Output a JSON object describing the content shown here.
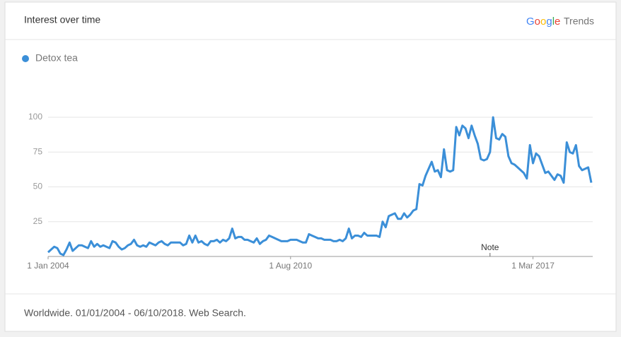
{
  "brand": {
    "name": "Google",
    "product": "Trends"
  },
  "footer": "Worldwide. 01/01/2004 - 06/10/2018. Web Search.",
  "chart_data": {
    "type": "line",
    "title": "Interest over time",
    "x": [
      "2004-01",
      "2004-02",
      "2004-03",
      "2004-04",
      "2004-05",
      "2004-06",
      "2004-07",
      "2004-08",
      "2004-09",
      "2004-10",
      "2004-11",
      "2004-12",
      "2005-01",
      "2005-02",
      "2005-03",
      "2005-04",
      "2005-05",
      "2005-06",
      "2005-07",
      "2005-08",
      "2005-09",
      "2005-10",
      "2005-11",
      "2005-12",
      "2006-01",
      "2006-02",
      "2006-03",
      "2006-04",
      "2006-05",
      "2006-06",
      "2006-07",
      "2006-08",
      "2006-09",
      "2006-10",
      "2006-11",
      "2006-12",
      "2007-01",
      "2007-02",
      "2007-03",
      "2007-04",
      "2007-05",
      "2007-06",
      "2007-07",
      "2007-08",
      "2007-09",
      "2007-10",
      "2007-11",
      "2007-12",
      "2008-01",
      "2008-02",
      "2008-03",
      "2008-04",
      "2008-05",
      "2008-06",
      "2008-07",
      "2008-08",
      "2008-09",
      "2008-10",
      "2008-11",
      "2008-12",
      "2009-01",
      "2009-02",
      "2009-03",
      "2009-04",
      "2009-05",
      "2009-06",
      "2009-07",
      "2009-08",
      "2009-09",
      "2009-10",
      "2009-11",
      "2009-12",
      "2010-01",
      "2010-02",
      "2010-03",
      "2010-04",
      "2010-05",
      "2010-06",
      "2010-07",
      "2010-08",
      "2010-09",
      "2010-10",
      "2010-11",
      "2010-12",
      "2011-01",
      "2011-02",
      "2011-03",
      "2011-04",
      "2011-05",
      "2011-06",
      "2011-07",
      "2011-08",
      "2011-09",
      "2011-10",
      "2011-11",
      "2011-12",
      "2012-01",
      "2012-02",
      "2012-03",
      "2012-04",
      "2012-05",
      "2012-06",
      "2012-07",
      "2012-08",
      "2012-09",
      "2012-10",
      "2012-11",
      "2012-12",
      "2013-01",
      "2013-02",
      "2013-03",
      "2013-04",
      "2013-05",
      "2013-06",
      "2013-07",
      "2013-08",
      "2013-09",
      "2013-10",
      "2013-11",
      "2013-12",
      "2014-01",
      "2014-02",
      "2014-03",
      "2014-04",
      "2014-05",
      "2014-06",
      "2014-07",
      "2014-08",
      "2014-09",
      "2014-10",
      "2014-11",
      "2014-12",
      "2015-01",
      "2015-02",
      "2015-03",
      "2015-04",
      "2015-05",
      "2015-06",
      "2015-07",
      "2015-08",
      "2015-09",
      "2015-10",
      "2015-11",
      "2015-12",
      "2016-01",
      "2016-02",
      "2016-03",
      "2016-04",
      "2016-05",
      "2016-06",
      "2016-07",
      "2016-08",
      "2016-09",
      "2016-10",
      "2016-11",
      "2016-12",
      "2017-01",
      "2017-02",
      "2017-03",
      "2017-04",
      "2017-05",
      "2017-06",
      "2017-07",
      "2017-08",
      "2017-09",
      "2017-10",
      "2017-11",
      "2017-12",
      "2018-01",
      "2018-02",
      "2018-03",
      "2018-04",
      "2018-05",
      "2018-06",
      "2018-07",
      "2018-08",
      "2018-09",
      "2018-10"
    ],
    "series": [
      {
        "name": "Detox tea",
        "color": "#3b8fd8",
        "values": [
          3,
          5,
          7,
          6,
          2,
          1,
          5,
          10,
          4,
          6,
          8,
          8,
          7,
          6,
          11,
          7,
          9,
          7,
          8,
          7,
          6,
          11,
          10,
          7,
          5,
          6,
          8,
          9,
          12,
          8,
          7,
          8,
          7,
          10,
          9,
          8,
          10,
          11,
          9,
          8,
          10,
          10,
          10,
          10,
          8,
          9,
          15,
          10,
          15,
          10,
          11,
          9,
          8,
          11,
          11,
          12,
          10,
          12,
          11,
          13,
          20,
          13,
          14,
          14,
          12,
          12,
          11,
          10,
          13,
          9,
          11,
          12,
          15,
          14,
          13,
          12,
          11,
          11,
          11,
          12,
          12,
          12,
          11,
          10,
          10,
          16,
          15,
          14,
          13,
          13,
          12,
          12,
          12,
          11,
          11,
          12,
          11,
          13,
          20,
          13,
          15,
          15,
          14,
          17,
          15,
          15,
          15,
          15,
          14,
          25,
          21,
          29,
          30,
          31,
          27,
          27,
          31,
          28,
          30,
          33,
          34,
          52,
          51,
          58,
          63,
          68,
          61,
          62,
          57,
          77,
          62,
          61,
          62,
          93,
          87,
          94,
          92,
          85,
          94,
          87,
          81,
          70,
          69,
          70,
          75,
          100,
          85,
          84,
          88,
          86,
          72,
          67,
          66,
          64,
          62,
          60,
          56,
          80,
          67,
          74,
          72,
          66,
          60,
          61,
          58,
          55,
          59,
          58,
          53,
          82,
          75,
          74,
          80,
          65,
          62,
          63,
          64,
          53
        ]
      }
    ],
    "xlim": [
      "2004-01",
      "2018-10"
    ],
    "xticks": [
      {
        "value": "2004-01",
        "label": "1 Jan 2004"
      },
      {
        "value": "2010-08",
        "label": "1 Aug 2010"
      },
      {
        "value": "2017-03",
        "label": "1 Mar 2017"
      }
    ],
    "ylim": [
      0,
      100
    ],
    "yticks": [
      25,
      50,
      75,
      100
    ],
    "grid": true,
    "legend": "top-left",
    "annotations": [
      {
        "text": "Note",
        "x": "2016-01"
      }
    ]
  }
}
